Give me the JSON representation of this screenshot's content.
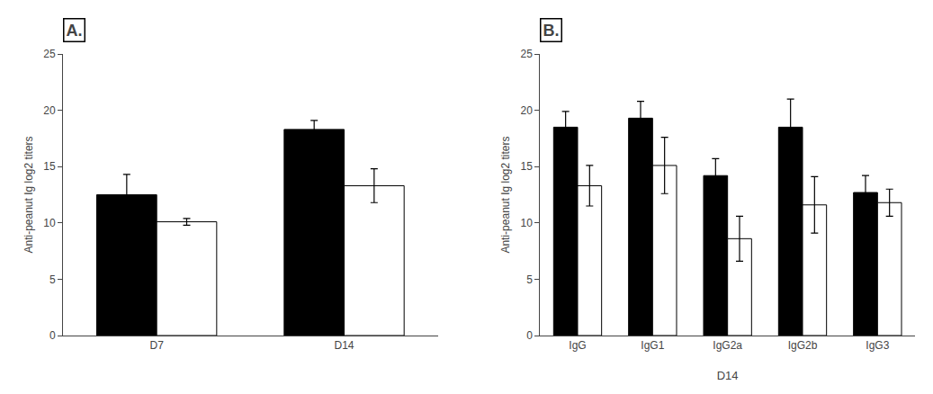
{
  "chart_data": [
    {
      "type": "bar",
      "title": "A.",
      "categories": [
        "D7",
        "D14"
      ],
      "series": [
        {
          "color": "#000000",
          "values": [
            12.5,
            18.3
          ],
          "errors": [
            1.8,
            0.8
          ]
        },
        {
          "color": "#ffffff",
          "values": [
            10.1,
            13.3
          ],
          "errors": [
            0.3,
            1.5
          ]
        }
      ],
      "ylabel": "Anti-peanut Ig log2 titers",
      "ylim": [
        0,
        25
      ],
      "yticks": [
        0,
        5,
        10,
        15,
        20,
        25
      ],
      "grid": false
    },
    {
      "type": "bar",
      "title": "B.",
      "categories": [
        "IgG",
        "IgG1",
        "IgG2a",
        "IgG2b",
        "IgG3"
      ],
      "series": [
        {
          "color": "#000000",
          "values": [
            18.5,
            19.3,
            14.2,
            18.5,
            12.7
          ],
          "errors": [
            1.4,
            1.5,
            1.5,
            2.5,
            1.5
          ]
        },
        {
          "color": "#ffffff",
          "values": [
            13.3,
            15.1,
            8.6,
            11.6,
            11.8
          ],
          "errors": [
            1.8,
            2.5,
            2.0,
            2.5,
            1.2
          ]
        }
      ],
      "ylabel": "Anti-peanut Ig log2 titers",
      "xlabel": "D14",
      "ylim": [
        0,
        25
      ],
      "yticks": [
        0,
        5,
        10,
        15,
        20,
        25
      ],
      "grid": false
    }
  ]
}
